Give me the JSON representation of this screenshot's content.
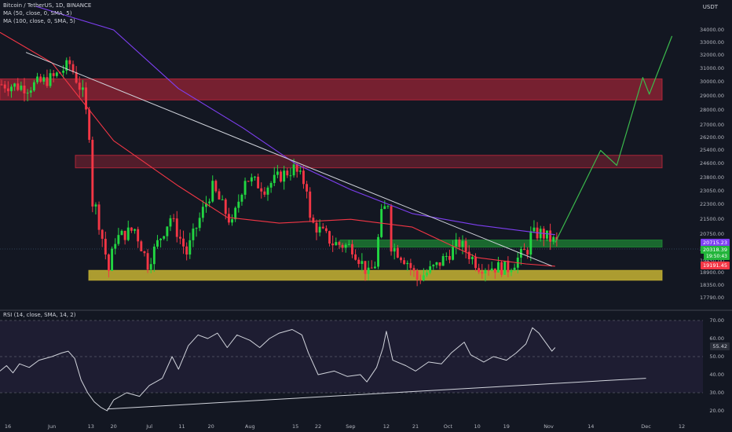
{
  "header": {
    "symbol_line": "Bitcoin / TetherUS, 1D, BINANCE",
    "ma50_label": "MA (50, close, 0, SMA, 5)",
    "ma100_label": "MA (100, close, 0, SMA, 5)",
    "rsi_label": "RSI (14, close, SMA, 14, 2)"
  },
  "currency": "USDT",
  "colors": {
    "background": "#131722",
    "up": "#22d642",
    "down": "#f23645",
    "ma50": "#f23645",
    "ma100": "#7e3ff2",
    "red_zone": "#c8283c",
    "green_zone": "#1e8c35",
    "yellow_zone": "#c8b432",
    "projection": "#3bb94c"
  },
  "tags": {
    "price_ma100": "20715.23",
    "price_last": "20318.39",
    "countdown": "19:50:43",
    "price_ma50": "19191.45",
    "rsi_value": "55.42"
  },
  "chart_data": [
    {
      "type": "candlestick",
      "title": "Bitcoin / TetherUS, 1D, BINANCE",
      "y_scale": "log",
      "ylim": [
        17350,
        36000
      ],
      "y_ticks": [
        "34000.00",
        "33000.00",
        "32000.00",
        "31000.00",
        "30000.00",
        "29000.00",
        "28000.00",
        "27000.00",
        "26200.00",
        "25400.00",
        "24600.00",
        "23800.00",
        "23050.00",
        "22300.00",
        "21500.00",
        "20750.00",
        "20000.00",
        "19450.00",
        "18900.00",
        "18350.00",
        "17790.00"
      ],
      "x_ticks": [
        "16",
        "Jun",
        "13",
        "20",
        "Jul",
        "11",
        "20",
        "Aug",
        "15",
        "22",
        "Sep",
        "12",
        "21",
        "Oct",
        "10",
        "19",
        "Nov",
        "14",
        "Dec",
        "12"
      ],
      "series": [
        {
          "name": "MA (50, close, 0, SMA, 5)",
          "color": "#f23645"
        },
        {
          "name": "MA (100, close, 0, SMA, 5)",
          "color": "#7e3ff2"
        }
      ],
      "close_path": [
        [
          "May 16",
          29800
        ],
        [
          "May 24",
          29600
        ],
        [
          "Jun 1",
          30300
        ],
        [
          "Jun 6",
          31300
        ],
        [
          "Jun 10",
          29100
        ],
        [
          "Jun 12",
          26500
        ],
        [
          "Jun 13",
          22400
        ],
        [
          "Jun 14",
          22100
        ],
        [
          "Jun 18",
          19000
        ],
        [
          "Jun 20",
          20500
        ],
        [
          "Jun 26",
          21000
        ],
        [
          "Jun 30",
          19300
        ],
        [
          "Jul 7",
          21600
        ],
        [
          "Jul 12",
          19800
        ],
        [
          "Jul 18",
          22400
        ],
        [
          "Jul 20",
          23200
        ],
        [
          "Jul 26",
          21200
        ],
        [
          "Jul 30",
          23800
        ],
        [
          "Aug 5",
          23200
        ],
        [
          "Aug 10",
          23900
        ],
        [
          "Aug 14",
          24300
        ],
        [
          "Aug 18",
          23300
        ],
        [
          "Aug 19",
          21400
        ],
        [
          "Aug 26",
          20300
        ],
        [
          "Sep 1",
          20100
        ],
        [
          "Sep 6",
          18800
        ],
        [
          "Sep 8",
          19300
        ],
        [
          "Sep 10",
          21700
        ],
        [
          "Sep 12",
          22400
        ],
        [
          "Sep 13",
          20200
        ],
        [
          "Sep 18",
          19400
        ],
        [
          "Sep 21",
          18600
        ],
        [
          "Sep 27",
          19200
        ],
        [
          "Oct 4",
          20300
        ],
        [
          "Oct 10",
          19200
        ],
        [
          "Oct 19",
          19100
        ],
        [
          "Oct 25",
          20000
        ],
        [
          "Oct 26",
          20700
        ],
        [
          "Oct 29",
          20800
        ],
        [
          "Nov 1",
          20500
        ],
        [
          "Nov 3",
          20318
        ]
      ],
      "ma50": [
        [
          "May 16",
          33800
        ],
        [
          "Jun 1",
          31400
        ],
        [
          "Jun 20",
          26000
        ],
        [
          "Jul 10",
          23300
        ],
        [
          "Jul 25",
          21600
        ],
        [
          "Aug 10",
          21300
        ],
        [
          "Sep 1",
          21500
        ],
        [
          "Sep 20",
          21100
        ],
        [
          "Oct 10",
          19600
        ],
        [
          "Oct 25",
          19300
        ],
        [
          "Nov 3",
          19191
        ]
      ],
      "ma100": [
        [
          "May 27",
          36000
        ],
        [
          "Jun 20",
          34000
        ],
        [
          "Jul 10",
          29500
        ],
        [
          "Jul 30",
          26800
        ],
        [
          "Aug 15",
          24600
        ],
        [
          "Sep 1",
          23100
        ],
        [
          "Sep 20",
          21800
        ],
        [
          "Oct 10",
          21200
        ],
        [
          "Oct 29",
          20800
        ],
        [
          "Nov 3",
          20715
        ]
      ],
      "zones": [
        {
          "color": "red",
          "from": 28700,
          "to": 30200
        },
        {
          "color": "red",
          "from": 24350,
          "to": 25100
        },
        {
          "color": "green",
          "from": 20100,
          "to": 20450
        },
        {
          "color": "yellow",
          "from": 18550,
          "to": 19000
        }
      ],
      "trendlines": [
        {
          "from": [
            "May 24",
            32200
          ],
          "to": [
            "Nov 2",
            19200
          ],
          "color": "#d1d4dc"
        }
      ],
      "projection": [
        [
          "Nov 3",
          20318
        ],
        [
          "Nov 17",
          25400
        ],
        [
          "Nov 22",
          24500
        ],
        [
          "Nov 30",
          30300
        ],
        [
          "Dec 2",
          29100
        ],
        [
          "Dec 9",
          33500
        ]
      ]
    },
    {
      "type": "line",
      "title": "RSI (14, close, SMA, 14, 2)",
      "ylim": [
        20,
        70
      ],
      "y_ticks": [
        "70.00",
        "60.00",
        "50.00",
        "40.00",
        "30.00",
        "20.00"
      ],
      "band": [
        30,
        70
      ],
      "values": [
        [
          "May 16",
          42
        ],
        [
          "May 18",
          45
        ],
        [
          "May 20",
          41
        ],
        [
          "May 22",
          46
        ],
        [
          "May 25",
          44
        ],
        [
          "May 28",
          48
        ],
        [
          "Jun 1",
          50
        ],
        [
          "Jun 4",
          52
        ],
        [
          "Jun 6",
          53
        ],
        [
          "Jun 8",
          49
        ],
        [
          "Jun 10",
          37
        ],
        [
          "Jun 12",
          30
        ],
        [
          "Jun 14",
          25
        ],
        [
          "Jun 16",
          22
        ],
        [
          "Jun 18",
          20
        ],
        [
          "Jun 20",
          26
        ],
        [
          "Jun 24",
          30
        ],
        [
          "Jun 28",
          28
        ],
        [
          "Jul 1",
          34
        ],
        [
          "Jul 5",
          38
        ],
        [
          "Jul 8",
          50
        ],
        [
          "Jul 10",
          43
        ],
        [
          "Jul 13",
          56
        ],
        [
          "Jul 16",
          62
        ],
        [
          "Jul 19",
          60
        ],
        [
          "Jul 22",
          63
        ],
        [
          "Jul 25",
          55
        ],
        [
          "Jul 28",
          62
        ],
        [
          "Aug 1",
          59
        ],
        [
          "Aug 4",
          55
        ],
        [
          "Aug 7",
          60
        ],
        [
          "Aug 10",
          63
        ],
        [
          "Aug 14",
          65
        ],
        [
          "Aug 17",
          62
        ],
        [
          "Aug 19",
          52
        ],
        [
          "Aug 22",
          40
        ],
        [
          "Aug 27",
          42
        ],
        [
          "Aug 31",
          39
        ],
        [
          "Sep 4",
          40
        ],
        [
          "Sep 6",
          36
        ],
        [
          "Sep 9",
          44
        ],
        [
          "Sep 11",
          55
        ],
        [
          "Sep 12",
          64
        ],
        [
          "Sep 14",
          48
        ],
        [
          "Sep 18",
          45
        ],
        [
          "Sep 21",
          42
        ],
        [
          "Sep 25",
          47
        ],
        [
          "Sep 29",
          46
        ],
        [
          "Oct 2",
          52
        ],
        [
          "Oct 6",
          58
        ],
        [
          "Oct 8",
          51
        ],
        [
          "Oct 12",
          47
        ],
        [
          "Oct 15",
          50
        ],
        [
          "Oct 19",
          48
        ],
        [
          "Oct 22",
          52
        ],
        [
          "Oct 25",
          57
        ],
        [
          "Oct 27",
          66
        ],
        [
          "Oct 29",
          63
        ],
        [
          "Oct 31",
          58
        ],
        [
          "Nov 2",
          53
        ],
        [
          "Nov 3",
          55
        ]
      ],
      "trendlines": [
        {
          "from": [
            "Jun 18",
            21
          ],
          "to": [
            "Dec 1",
            38
          ],
          "color": "#d1d4dc"
        }
      ]
    }
  ]
}
